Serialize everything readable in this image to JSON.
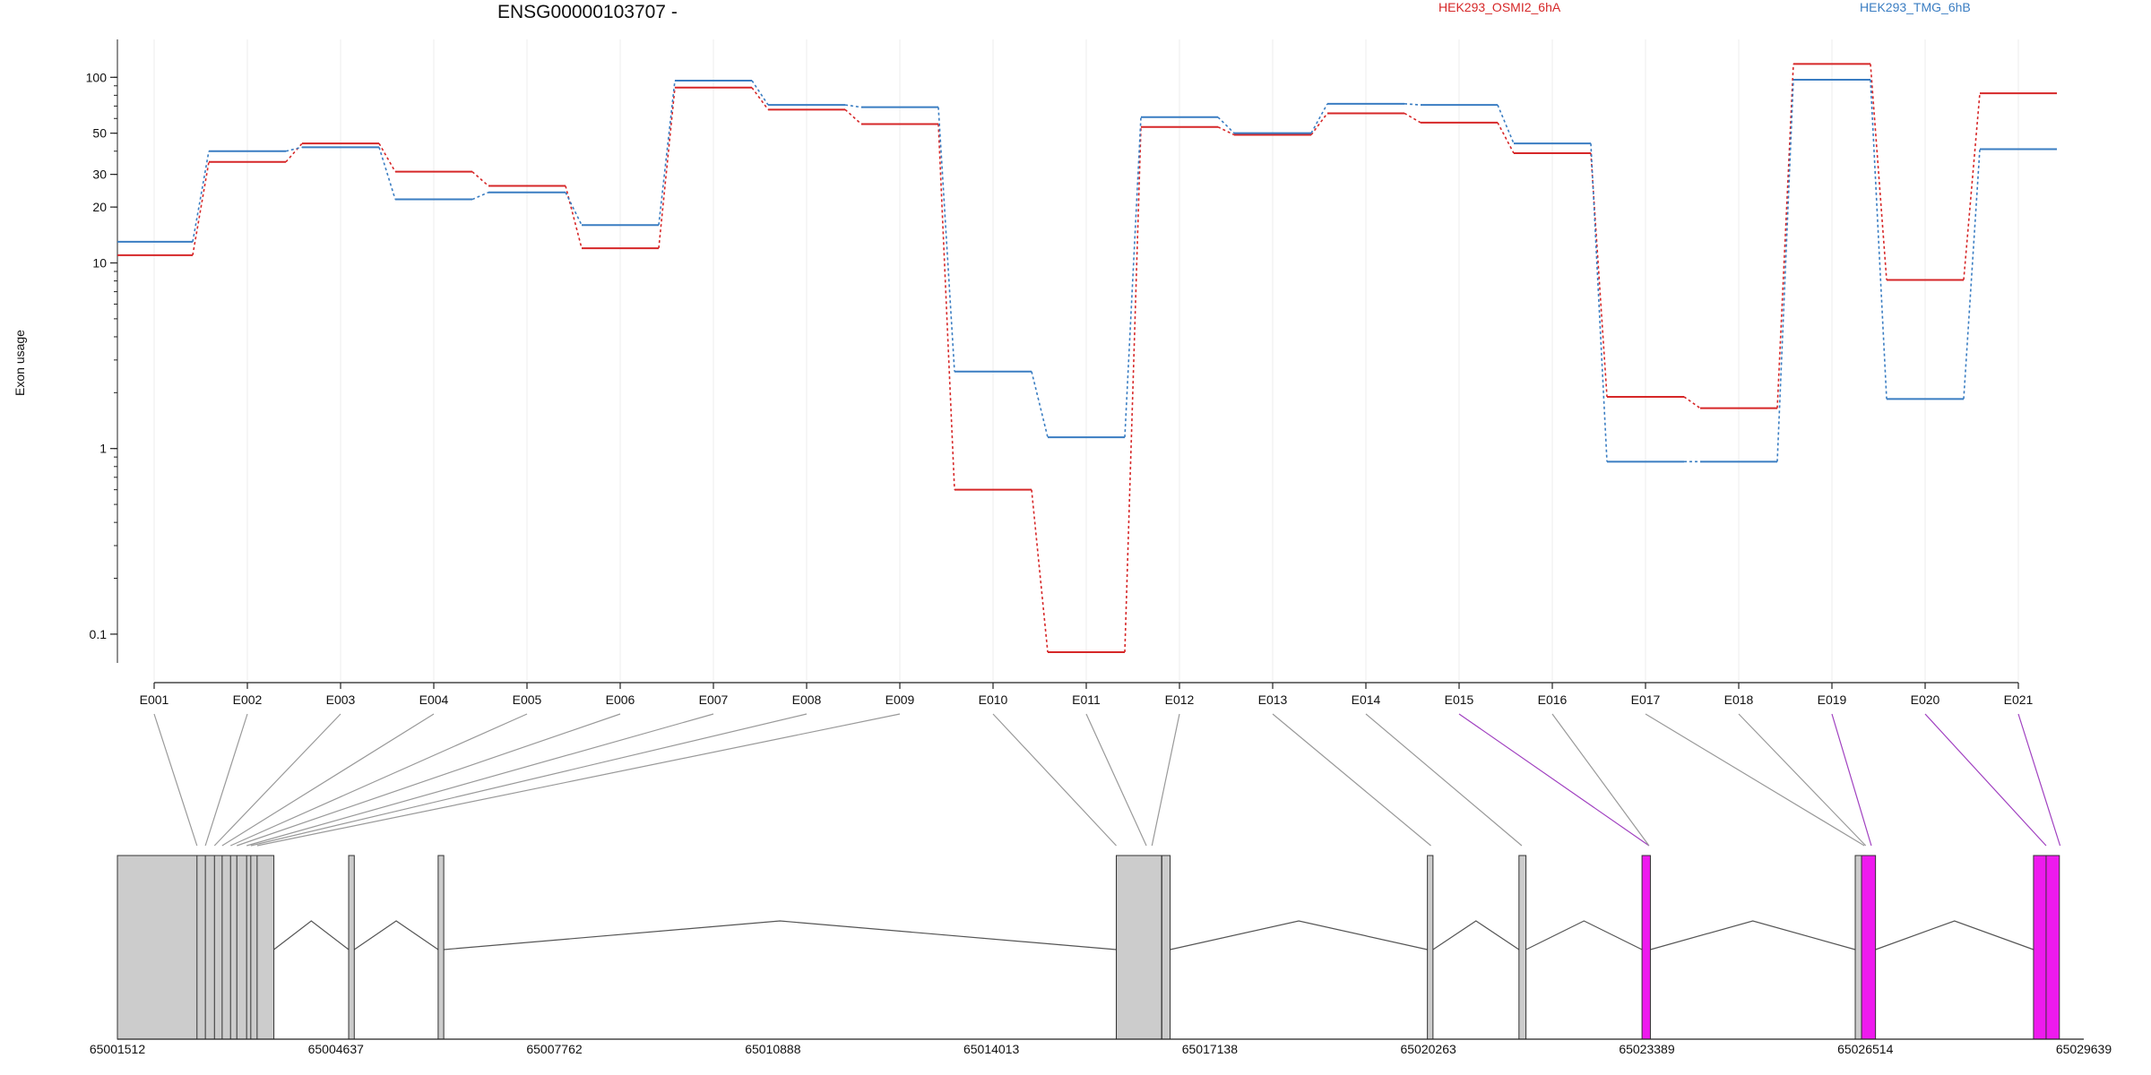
{
  "chart_data": {
    "type": "line",
    "title": "ENSG00000103707 -",
    "xlabel": "",
    "ylabel": "Exon usage",
    "yscale": "log",
    "ylim": [
      0.07,
      160
    ],
    "yticks": [
      0.1,
      1,
      10,
      20,
      30,
      50,
      100
    ],
    "ytick_labels": [
      "0.1",
      "1",
      "10",
      "20",
      "30",
      "50",
      "100"
    ],
    "grid": "vertical at exon positions",
    "legend_placement": "top",
    "categories": [
      "E001",
      "E002",
      "E003",
      "E004",
      "E005",
      "E006",
      "E007",
      "E008",
      "E009",
      "E010",
      "E011",
      "E012",
      "E013",
      "E014",
      "E015",
      "E016",
      "E017",
      "E018",
      "E019",
      "E020",
      "E021"
    ],
    "series": [
      {
        "name": "HEK293_OSMI2_6hA",
        "color": "#d62728",
        "values": [
          11,
          35,
          44,
          31,
          26,
          12,
          88,
          67,
          56,
          0.6,
          0.08,
          54,
          49,
          64,
          57,
          39,
          1.9,
          1.65,
          118,
          8.1,
          82
        ]
      },
      {
        "name": "HEK293_TMG_6hB",
        "color": "#3a7dc2",
        "values": [
          13,
          40,
          42,
          22,
          24,
          16,
          96,
          71,
          69,
          2.6,
          1.15,
          61,
          50,
          72,
          71,
          44,
          0.85,
          0.85,
          97,
          1.85,
          41
        ]
      }
    ],
    "gene_model": {
      "coordinate_ticks": [
        "65001512",
        "65004637",
        "65007762",
        "65010888",
        "65014013",
        "65017138",
        "65020263",
        "65023389",
        "65026514",
        "65029639"
      ],
      "xlim": [
        65001512,
        65029639
      ],
      "exon_color": "#cccccc",
      "highlight_color": "#ee1aee",
      "exon_genomic_positions": [
        65002650,
        65002770,
        65002900,
        65003010,
        65003130,
        65003220,
        65003360,
        65003420,
        65003510,
        65015800,
        65016230,
        65016310,
        65020300,
        65021600,
        65023420,
        65023420,
        65026500,
        65026520,
        65026600,
        65029100,
        65029300
      ],
      "highlighted_exons": [
        "E015",
        "E019",
        "E020",
        "E021"
      ],
      "blocks": [
        {
          "start": 65001512,
          "end": 65003750,
          "fill": "#cccccc"
        },
        {
          "start": 65004820,
          "end": 65004900,
          "fill": "#cccccc"
        },
        {
          "start": 65006100,
          "end": 65006180,
          "fill": "#cccccc"
        },
        {
          "start": 65015800,
          "end": 65016450,
          "fill": "#cccccc"
        },
        {
          "start": 65016450,
          "end": 65016570,
          "fill": "#cccccc"
        },
        {
          "start": 65020250,
          "end": 65020330,
          "fill": "#cccccc"
        },
        {
          "start": 65021560,
          "end": 65021660,
          "fill": "#cccccc"
        },
        {
          "start": 65023320,
          "end": 65023440,
          "fill": "#ee1aee"
        },
        {
          "start": 65026370,
          "end": 65026460,
          "fill": "#cccccc"
        },
        {
          "start": 65026460,
          "end": 65026660,
          "fill": "#ee1aee"
        },
        {
          "start": 65028920,
          "end": 65029290,
          "fill": "#ee1aee"
        }
      ],
      "introns": [
        [
          65003750,
          65004820
        ],
        [
          65004900,
          65006100
        ],
        [
          65006180,
          65015800
        ],
        [
          65016570,
          65020250
        ],
        [
          65020330,
          65021560
        ],
        [
          65021660,
          65023320
        ],
        [
          65023440,
          65026370
        ],
        [
          65026660,
          65028920
        ]
      ]
    }
  }
}
